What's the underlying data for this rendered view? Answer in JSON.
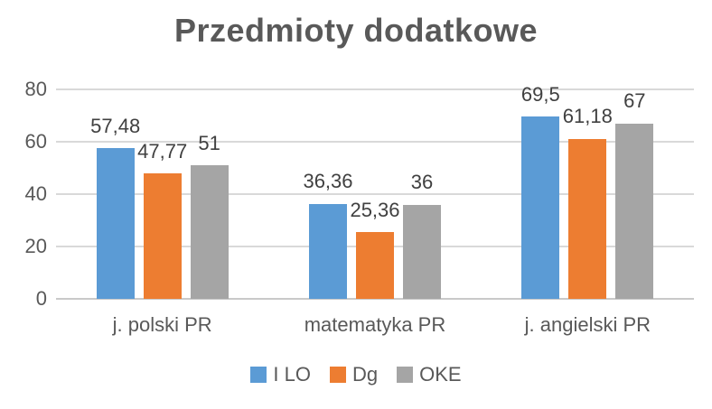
{
  "chart_data": {
    "type": "bar",
    "title": "Przedmioty dodatkowe",
    "categories": [
      "j. polski PR",
      "matematyka PR",
      "j. angielski PR"
    ],
    "series": [
      {
        "name": "I LO",
        "color": "#5B9BD5",
        "values": [
          57.48,
          36.36,
          69.5
        ],
        "labels": [
          "57,48",
          "36,36",
          "69,5"
        ]
      },
      {
        "name": "Dg",
        "color": "#ED7D31",
        "values": [
          47.77,
          25.36,
          61.18
        ],
        "labels": [
          "47,77",
          "25,36",
          "61,18"
        ]
      },
      {
        "name": "OKE",
        "color": "#A5A5A5",
        "values": [
          51,
          36,
          67
        ],
        "labels": [
          "51",
          "36",
          "67"
        ]
      }
    ],
    "xlabel": "",
    "ylabel": "",
    "ylim": [
      0,
      80
    ],
    "yticks": [
      0,
      20,
      40,
      60,
      80
    ],
    "grid": true,
    "legend_position": "bottom",
    "colors": {
      "title_text": "#595959",
      "axis_text": "#595959",
      "data_label_text": "#404040",
      "gridline": "#D9D9D9",
      "axis_line": "#C9C9C9",
      "background": "#FFFFFF"
    }
  }
}
